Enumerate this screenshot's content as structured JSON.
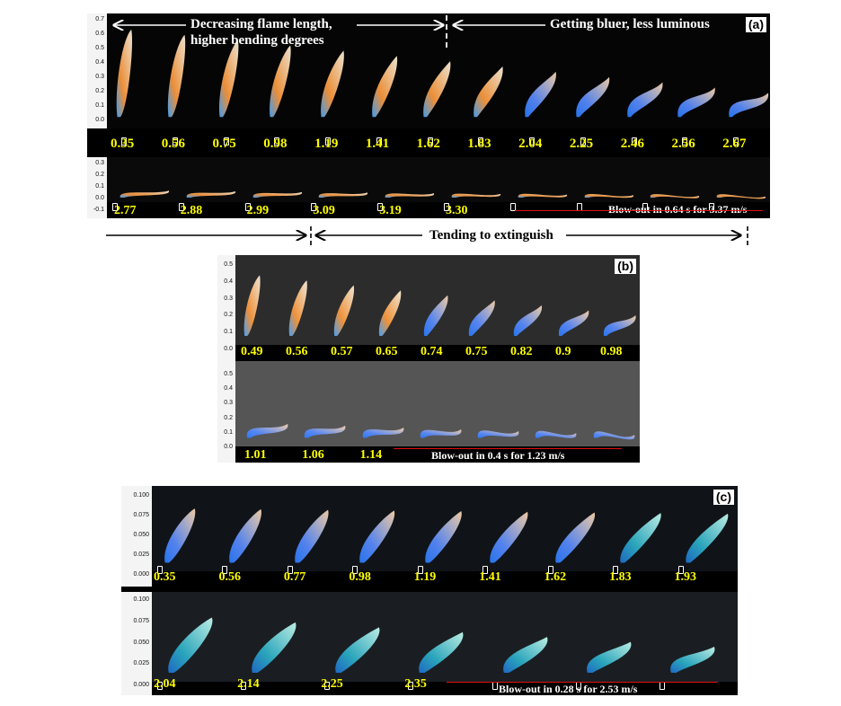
{
  "panel_a": {
    "tag": "(a)",
    "header_left_line1": "Decreasing flame length,",
    "header_left_line2": "higher bending degrees",
    "header_right": "Getting bluer, less luminous",
    "axis_top": [
      "0.7",
      "0.6",
      "0.5",
      "0.4",
      "0.3",
      "0.2",
      "0.1",
      "0.0"
    ],
    "axis_bottom": [
      "0.3",
      "0.2",
      "0.1",
      "0.0",
      "-0.1"
    ],
    "row1_labels": [
      "0.35",
      "0.56",
      "0.75",
      "0.98",
      "1.19",
      "1.41",
      "1.62",
      "1.83",
      "2.04",
      "2.25",
      "2.46",
      "2.56",
      "2.67"
    ],
    "row2_labels": [
      "2.77",
      "2.88",
      "2.99",
      "3.09",
      "3.19",
      "3.30"
    ],
    "blowout": "Blow-out in 0.64 s for 3.37 m/s",
    "tending": "Tending to extinguish"
  },
  "panel_b": {
    "tag": "(b)",
    "axis_top": [
      "0.5",
      "0.4",
      "0.3",
      "0.2",
      "0.1",
      "0.0"
    ],
    "axis_bottom": [
      "0.5",
      "0.4",
      "0.3",
      "0.2",
      "0.1",
      "0.0"
    ],
    "row1_labels": [
      "0.49",
      "0.56",
      "0.57",
      "0.65",
      "0.74",
      "0.75",
      "0.82",
      "0.9",
      "0.98"
    ],
    "row2_labels": [
      "1.01",
      "1.06",
      "1.14"
    ],
    "blowout": "Blow-out in 0.4 s for 1.23 m/s"
  },
  "panel_c": {
    "tag": "(c)",
    "axis_top": [
      "0.100",
      "0.075",
      "0.050",
      "0.025",
      "0.000"
    ],
    "axis_bottom": [
      "0.100",
      "0.075",
      "0.050",
      "0.025",
      "0.000"
    ],
    "row1_labels": [
      "0.35",
      "0.56",
      "0.77",
      "0.98",
      "1.19",
      "1.41",
      "1.62",
      "1.83",
      "1.93"
    ],
    "row2_labels": [
      "2.04",
      "2.14",
      "2.25",
      "2.35"
    ],
    "blowout": "Blow-out in 0.28 s for 2.53 m/s"
  },
  "colors": {
    "label": "#ffff00",
    "arrow": "#e01010",
    "background": "#000000"
  }
}
